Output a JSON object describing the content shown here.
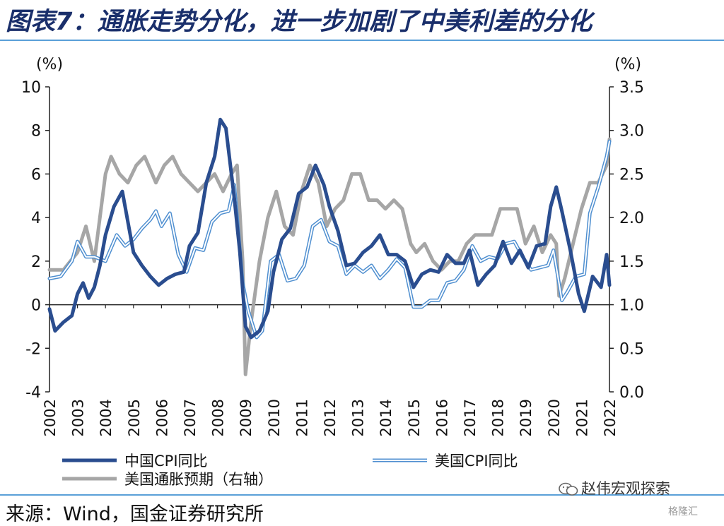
{
  "title": "图表7：通胀走势分化，进一步加剧了中美利差的分化",
  "source": "来源：Wind，国金证券研究所",
  "brand": {
    "name": "赵伟宏观探索",
    "watermark": "格隆汇",
    "icon": "wechat-icon"
  },
  "chart_data": {
    "type": "line",
    "left_unit": "(%)",
    "right_unit": "(%)",
    "left_axis": {
      "min": -4,
      "max": 10,
      "ticks": [
        -4,
        -2,
        0,
        2,
        4,
        6,
        8,
        10
      ],
      "tick_labels": [
        "-4",
        "-2",
        "0",
        "2",
        "4",
        "6",
        "8",
        "10"
      ]
    },
    "right_axis": {
      "min": 0.0,
      "max": 3.5,
      "ticks": [
        0.0,
        0.5,
        1.0,
        1.5,
        2.0,
        2.5,
        3.0,
        3.5
      ],
      "tick_labels": [
        "0.0",
        "0.5",
        "1.0",
        "1.5",
        "2.0",
        "2.5",
        "3.0",
        "3.5"
      ]
    },
    "x_axis": {
      "min": 2002,
      "max": 2022,
      "tick_labels": [
        "2002",
        "2003",
        "2004",
        "2005",
        "2006",
        "2007",
        "2008",
        "2009",
        "2010",
        "2011",
        "2012",
        "2013",
        "2014",
        "2015",
        "2016",
        "2017",
        "2018",
        "2019",
        "2020",
        "2021",
        "2022"
      ]
    },
    "legend": [
      "中国CPI同比",
      "美国CPI同比",
      "美国通胀预期（右轴）"
    ],
    "colors": {
      "china": "#2a4d8f",
      "us_cpi": "#4f8fd0",
      "us_exp": "#a6a6a6"
    },
    "series": [
      {
        "name": "中国CPI同比",
        "axis": "left",
        "x": [
          2002.0,
          2002.2,
          2002.5,
          2002.8,
          2003.0,
          2003.2,
          2003.4,
          2003.6,
          2003.8,
          2004.0,
          2004.3,
          2004.6,
          2004.8,
          2005.0,
          2005.3,
          2005.6,
          2005.9,
          2006.2,
          2006.5,
          2006.8,
          2007.0,
          2007.3,
          2007.6,
          2007.9,
          2008.1,
          2008.3,
          2008.6,
          2008.8,
          2009.0,
          2009.2,
          2009.5,
          2009.8,
          2010.0,
          2010.3,
          2010.6,
          2010.9,
          2011.2,
          2011.5,
          2011.8,
          2012.0,
          2012.3,
          2012.6,
          2012.9,
          2013.2,
          2013.5,
          2013.8,
          2014.1,
          2014.4,
          2014.7,
          2015.0,
          2015.3,
          2015.6,
          2015.9,
          2016.2,
          2016.5,
          2016.8,
          2017.0,
          2017.3,
          2017.6,
          2017.9,
          2018.2,
          2018.5,
          2018.8,
          2019.1,
          2019.4,
          2019.7,
          2019.9,
          2020.1,
          2020.3,
          2020.6,
          2020.9,
          2021.1,
          2021.4,
          2021.7,
          2021.9,
          2022.0
        ],
        "values": [
          -0.2,
          -1.2,
          -0.8,
          -0.5,
          0.5,
          1.0,
          0.3,
          0.8,
          1.8,
          3.2,
          4.5,
          5.2,
          3.8,
          2.4,
          1.8,
          1.3,
          0.9,
          1.2,
          1.4,
          1.5,
          2.7,
          3.3,
          5.6,
          6.8,
          8.5,
          8.1,
          4.9,
          2.4,
          -1.0,
          -1.5,
          -1.2,
          -0.3,
          1.5,
          3.0,
          3.5,
          5.1,
          5.4,
          6.4,
          5.5,
          4.5,
          3.4,
          1.8,
          1.9,
          2.4,
          2.7,
          3.2,
          2.3,
          2.3,
          2.0,
          0.8,
          1.4,
          1.6,
          1.5,
          2.3,
          1.9,
          1.9,
          2.5,
          0.9,
          1.4,
          1.8,
          2.9,
          1.9,
          2.5,
          1.7,
          2.7,
          2.8,
          4.5,
          5.4,
          4.3,
          2.5,
          0.5,
          -0.3,
          1.3,
          0.8,
          2.3,
          0.9
        ]
      },
      {
        "name": "美国CPI同比",
        "axis": "left",
        "x": [
          2002.0,
          2002.4,
          2002.8,
          2003.0,
          2003.3,
          2003.6,
          2004.0,
          2004.4,
          2004.7,
          2005.0,
          2005.3,
          2005.6,
          2005.8,
          2006.0,
          2006.3,
          2006.6,
          2006.9,
          2007.2,
          2007.5,
          2007.8,
          2008.1,
          2008.4,
          2008.6,
          2008.9,
          2009.1,
          2009.4,
          2009.6,
          2009.9,
          2010.2,
          2010.5,
          2010.8,
          2011.1,
          2011.4,
          2011.7,
          2012.0,
          2012.3,
          2012.6,
          2012.9,
          2013.2,
          2013.5,
          2013.8,
          2014.1,
          2014.4,
          2014.7,
          2015.0,
          2015.3,
          2015.6,
          2015.9,
          2016.2,
          2016.5,
          2016.8,
          2017.1,
          2017.4,
          2017.7,
          2018.0,
          2018.3,
          2018.6,
          2018.9,
          2019.2,
          2019.5,
          2019.8,
          2020.0,
          2020.3,
          2020.5,
          2020.8,
          2021.1,
          2021.3,
          2021.6,
          2021.9,
          2022.0
        ],
        "values": [
          1.2,
          1.3,
          2.0,
          2.9,
          2.2,
          2.2,
          2.0,
          3.2,
          2.7,
          3.0,
          3.5,
          3.9,
          4.3,
          3.6,
          4.2,
          2.3,
          1.5,
          2.6,
          2.5,
          3.8,
          4.2,
          4.3,
          5.5,
          1.0,
          -0.3,
          -1.5,
          -1.2,
          2.0,
          2.3,
          1.1,
          1.2,
          1.8,
          3.6,
          3.9,
          2.9,
          2.7,
          1.4,
          1.8,
          1.5,
          1.8,
          1.2,
          1.6,
          2.1,
          1.7,
          -0.1,
          -0.1,
          0.2,
          0.2,
          1.0,
          1.1,
          1.6,
          2.7,
          2.0,
          2.2,
          2.1,
          2.8,
          2.9,
          2.2,
          1.6,
          1.7,
          1.8,
          2.5,
          0.2,
          0.6,
          1.3,
          1.4,
          4.2,
          5.4,
          6.8,
          7.5
        ]
      },
      {
        "name": "美国通胀预期（右轴）",
        "axis": "right",
        "x": [
          2002.0,
          2002.5,
          2003.0,
          2003.3,
          2003.6,
          2004.0,
          2004.2,
          2004.5,
          2004.8,
          2005.1,
          2005.4,
          2005.8,
          2006.1,
          2006.4,
          2006.7,
          2007.0,
          2007.3,
          2007.6,
          2007.9,
          2008.2,
          2008.5,
          2008.7,
          2008.9,
          2009.0,
          2009.2,
          2009.5,
          2009.8,
          2010.1,
          2010.4,
          2010.7,
          2011.0,
          2011.3,
          2011.6,
          2011.9,
          2012.2,
          2012.5,
          2012.8,
          2013.1,
          2013.4,
          2013.7,
          2014.0,
          2014.3,
          2014.6,
          2014.9,
          2015.1,
          2015.4,
          2015.7,
          2016.0,
          2016.3,
          2016.6,
          2016.9,
          2017.2,
          2017.5,
          2017.8,
          2018.1,
          2018.4,
          2018.7,
          2019.0,
          2019.3,
          2019.6,
          2019.9,
          2020.1,
          2020.2,
          2020.4,
          2020.7,
          2021.0,
          2021.3,
          2021.6,
          2021.9,
          2022.0
        ],
        "values": [
          1.4,
          1.4,
          1.6,
          1.9,
          1.5,
          2.5,
          2.7,
          2.5,
          2.4,
          2.6,
          2.7,
          2.4,
          2.6,
          2.7,
          2.5,
          2.4,
          2.3,
          2.4,
          2.5,
          2.3,
          2.5,
          2.6,
          1.5,
          0.2,
          0.8,
          1.5,
          2.0,
          2.3,
          1.9,
          1.8,
          2.3,
          2.6,
          2.4,
          1.9,
          2.1,
          2.2,
          2.5,
          2.5,
          2.2,
          2.2,
          2.1,
          2.2,
          2.1,
          1.7,
          1.6,
          1.7,
          1.5,
          1.4,
          1.5,
          1.5,
          1.7,
          1.8,
          1.8,
          1.8,
          2.1,
          2.1,
          2.1,
          1.7,
          1.9,
          1.6,
          1.8,
          1.7,
          1.1,
          1.3,
          1.7,
          2.1,
          2.4,
          2.4,
          2.6,
          2.9
        ]
      }
    ]
  }
}
